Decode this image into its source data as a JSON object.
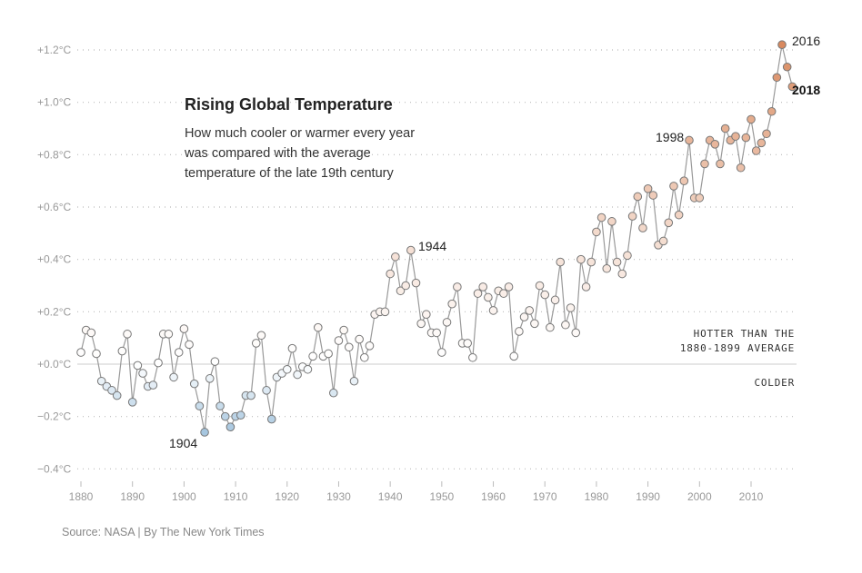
{
  "chart_data": {
    "type": "line",
    "title": "Rising Global Temperature",
    "subtitle_lines": [
      "How much cooler or warmer every year",
      "was compared with the average",
      "temperature of the late 19th century"
    ],
    "xlabel": "",
    "ylabel": "",
    "xlim": [
      1880,
      2018
    ],
    "ylim": [
      -0.4,
      1.2
    ],
    "x_ticks": [
      "1880",
      "1890",
      "1900",
      "1910",
      "1920",
      "1930",
      "1940",
      "1950",
      "1960",
      "1970",
      "1980",
      "1990",
      "2000",
      "2010"
    ],
    "y_ticks": [
      "−0.4°C",
      "−0.2°C",
      "+0.0°C",
      "+0.2°C",
      "+0.4°C",
      "+0.6°C",
      "+0.8°C",
      "+1.0°C",
      "+1.2°C"
    ],
    "y_tick_values": [
      -0.4,
      -0.2,
      0,
      0.2,
      0.4,
      0.6,
      0.8,
      1.0,
      1.2
    ],
    "grid": true,
    "x_start": 1880,
    "values": [
      0.045,
      0.13,
      0.12,
      0.04,
      -0.065,
      -0.085,
      -0.1,
      -0.12,
      0.05,
      0.115,
      -0.145,
      -0.005,
      -0.035,
      -0.085,
      -0.08,
      0.005,
      0.115,
      0.115,
      -0.05,
      0.045,
      0.135,
      0.075,
      -0.075,
      -0.16,
      -0.26,
      -0.055,
      0.01,
      -0.16,
      -0.2,
      -0.24,
      -0.2,
      -0.195,
      -0.12,
      -0.12,
      0.08,
      0.11,
      -0.1,
      -0.21,
      -0.05,
      -0.035,
      -0.02,
      0.06,
      -0.04,
      -0.01,
      -0.02,
      0.03,
      0.14,
      0.03,
      0.04,
      -0.11,
      0.09,
      0.13,
      0.065,
      -0.065,
      0.095,
      0.025,
      0.07,
      0.19,
      0.2,
      0.2,
      0.345,
      0.41,
      0.28,
      0.3,
      0.435,
      0.31,
      0.155,
      0.19,
      0.12,
      0.12,
      0.045,
      0.16,
      0.23,
      0.295,
      0.08,
      0.08,
      0.025,
      0.27,
      0.295,
      0.255,
      0.205,
      0.28,
      0.27,
      0.295,
      0.03,
      0.125,
      0.18,
      0.205,
      0.155,
      0.3,
      0.265,
      0.14,
      0.245,
      0.39,
      0.15,
      0.215,
      0.12,
      0.4,
      0.295,
      0.39,
      0.505,
      0.56,
      0.365,
      0.545,
      0.39,
      0.345,
      0.415,
      0.565,
      0.64,
      0.52,
      0.67,
      0.645,
      0.455,
      0.47,
      0.54,
      0.68,
      0.57,
      0.7,
      0.855,
      0.635,
      0.635,
      0.765,
      0.855,
      0.84,
      0.765,
      0.9,
      0.855,
      0.87,
      0.75,
      0.865,
      0.935,
      0.815,
      0.845,
      0.88,
      0.965,
      1.095,
      1.22,
      1.135,
      1.06
    ],
    "annotations": [
      {
        "year": 1904,
        "label": "1904"
      },
      {
        "year": 1944,
        "label": "1944"
      },
      {
        "year": 1998,
        "label": "1998"
      },
      {
        "year": 2016,
        "label": "2016"
      },
      {
        "year": 2018,
        "label": "2018"
      }
    ],
    "reference_labels": {
      "above_line1": "HOTTER THAN THE",
      "above_line2": "1880-1899 AVERAGE",
      "below": "COLDER"
    },
    "colors": {
      "cold": "#a6c6df",
      "neutral": "#ffffff",
      "warm": "#d9895e",
      "line": "#999999",
      "stroke": "#777777"
    }
  },
  "source": "Source: NASA | By The New York Times"
}
